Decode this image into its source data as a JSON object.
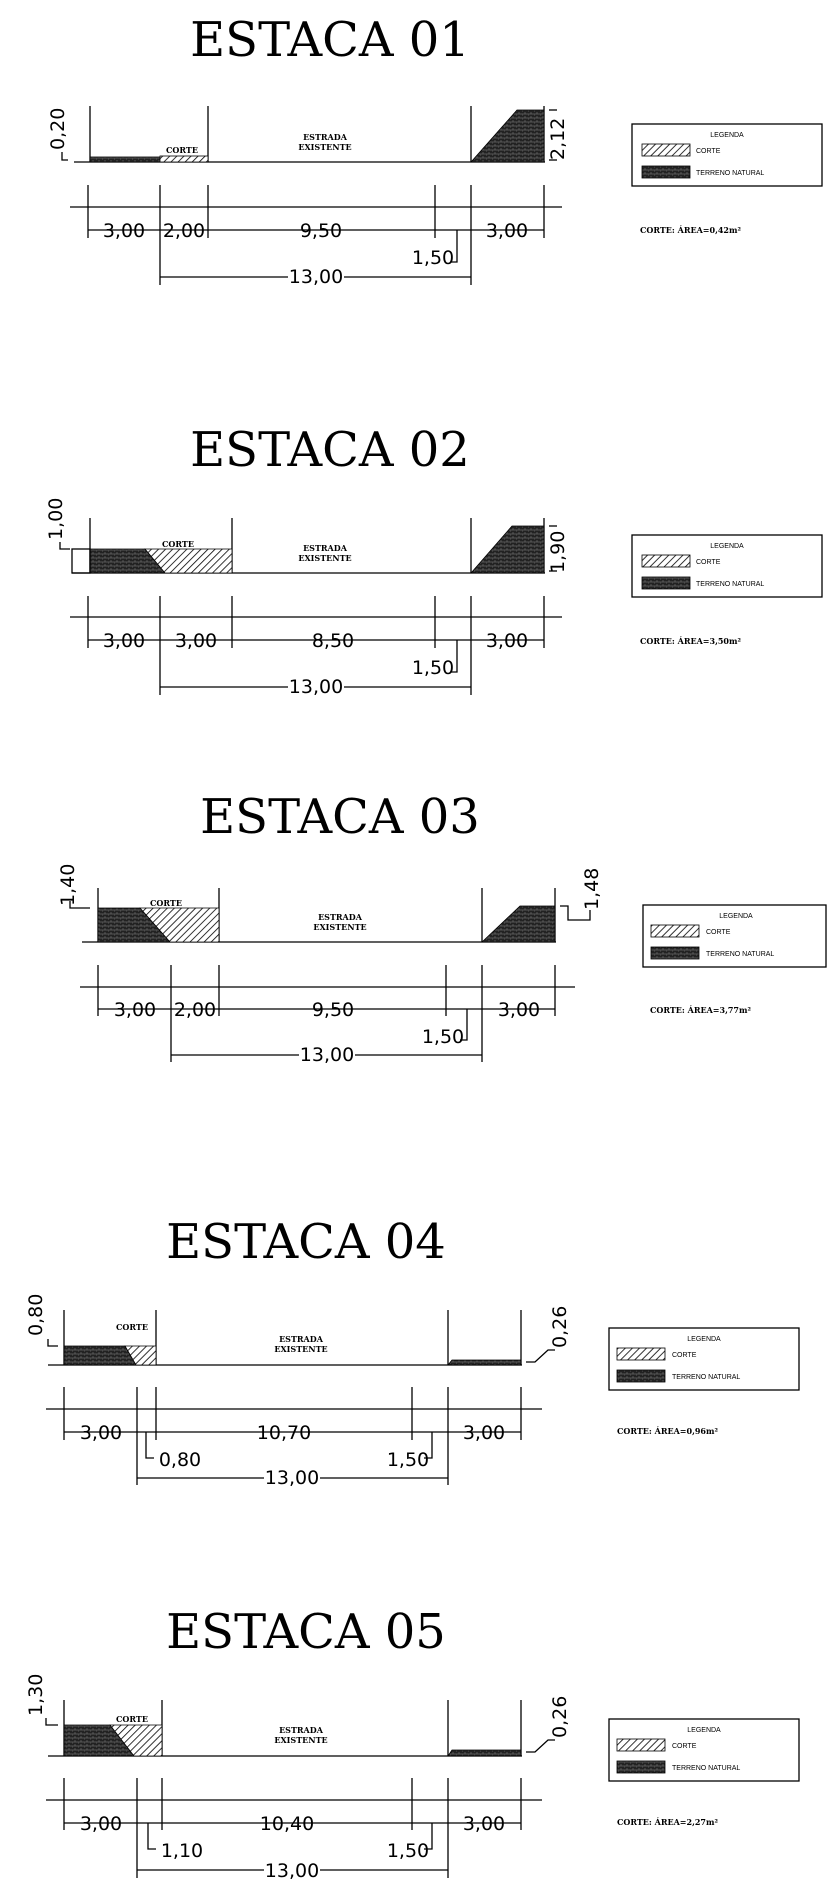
{
  "sections": [
    {
      "title": "ESTACA  01",
      "corte_label": "CORTE",
      "road_label_1": "ESTRADA",
      "road_label_2": "EXISTENTE",
      "left_height": "0,20",
      "right_height": "2,12",
      "dims": [
        "3,00",
        "2,00",
        "9,50",
        "1,50",
        "3,00"
      ],
      "total": "13,00",
      "legend_title": "LEGENDA",
      "legend_corte": "CORTE",
      "legend_terreno": "TERRENO NATURAL",
      "area": "CORTE:  ÁREA=0,42m²"
    },
    {
      "title": "ESTACA  02",
      "corte_label": "CORTE",
      "road_label_1": "ESTRADA",
      "road_label_2": "EXISTENTE",
      "left_height": "1,00",
      "right_height": "1,90",
      "dims": [
        "3,00",
        "3,00",
        "8,50",
        "1,50",
        "3,00"
      ],
      "total": "13,00",
      "legend_title": "LEGENDA",
      "legend_corte": "CORTE",
      "legend_terreno": "TERRENO NATURAL",
      "area": "CORTE:  ÁREA=3,50m²"
    },
    {
      "title": "ESTACA  03",
      "corte_label": "CORTE",
      "road_label_1": "ESTRADA",
      "road_label_2": "EXISTENTE",
      "left_height": "1,40",
      "right_height": "1,48",
      "dims": [
        "3,00",
        "2,00",
        "9,50",
        "1,50",
        "3,00"
      ],
      "total": "13,00",
      "legend_title": "LEGENDA",
      "legend_corte": "CORTE",
      "legend_terreno": "TERRENO NATURAL",
      "area": "CORTE:  ÁREA=3,77m²"
    },
    {
      "title": "ESTACA  04",
      "corte_label": "CORTE",
      "road_label_1": "ESTRADA",
      "road_label_2": "EXISTENTE",
      "left_height": "0,80",
      "right_height": "0,26",
      "dims": [
        "3,00",
        "0,80",
        "10,70",
        "1,50",
        "3,00"
      ],
      "total": "13,00",
      "legend_title": "LEGENDA",
      "legend_corte": "CORTE",
      "legend_terreno": "TERRENO NATURAL",
      "area": "CORTE:  ÁREA=0,96m²"
    },
    {
      "title": "ESTACA  05",
      "corte_label": "CORTE",
      "road_label_1": "ESTRADA",
      "road_label_2": "EXISTENTE",
      "left_height": "1,30",
      "right_height": "0,26",
      "dims": [
        "3,00",
        "1,10",
        "10,40",
        "1,50",
        "3,00"
      ],
      "total": "13,00",
      "legend_title": "LEGENDA",
      "legend_corte": "CORTE",
      "legend_terreno": "TERRENO NATURAL",
      "area": "CORTE:  ÁREA=2,27m²"
    }
  ]
}
